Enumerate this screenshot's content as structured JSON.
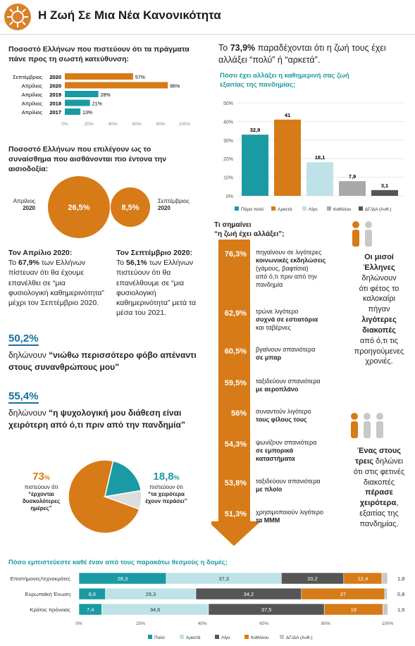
{
  "header": {
    "title": "Η Ζωή Σε Μια Νέα Κανονικότητα"
  },
  "colors": {
    "orange": "#d67b17",
    "teal": "#1a9aa3",
    "light_teal": "#bde3e8",
    "dark_gray": "#555555",
    "gray": "#a8a8a8",
    "light_gray": "#c8c8c8",
    "blue": "#1a6fa0"
  },
  "section1": {
    "title": "Ποσοστό Ελλήνων που πιστεύουν ότι τα πράγματα πάνε προς τη σωστή κατεύθυνση:"
  },
  "section2": {
    "title": "Ποσοστό Ελλήνων που επιλέγουν ως το συναίσθημα που αισθάνονται πιο έντονα την αισιοδοξία:",
    "left_label_1": "Απρίλιος",
    "left_label_2": "2020",
    "right_label_1": "Σεπτέμβριος",
    "right_label_2": "2020"
  },
  "april_text": {
    "head": "Τον Απρίλιο 2020:",
    "body_1": "Το",
    "pct": "67,9%",
    "body_2": "των Ελλήνων πίστευαν ότι θα έχουμε επανέλθει σε “μια φυσιολογική καθημερινότητα” μέχρι τον Σεπτέμβριο 2020."
  },
  "sept_text": {
    "head": "Τον Σεπτέμβριο 2020:",
    "body_1": "Το",
    "pct": "56,1%",
    "body_2": "των Ελλήνων πιστεύουν ότι θα επανέλθουμε σε “μια φυσιολογική καθημερινότητα” μετά τα μέσα του 2021."
  },
  "fear": {
    "pct": "50,2%",
    "lead": "δηλώνουν",
    "quote": "“νιώθω περισσότερο φόβο απέναντι στους συνανθρώπους μου”"
  },
  "psych": {
    "pct": "55,4%",
    "lead": "δηλώνουν",
    "quote": "“η ψυχολογική μου διάθεση είναι χειρότερη από ό,τι πριν από την πανδημία”"
  },
  "pie_text": {
    "left_pct": "73",
    "left_sup": "%",
    "left_1": "πιστεύουν ότι",
    "left_2": "“έρχονται",
    "left_3": "δυσκολότερες",
    "left_4": "ημέρες”",
    "right_pct": "18,8",
    "right_sup": "%",
    "right_1": "πιστεύουν ότι",
    "right_2": "“τα χειρότερα",
    "right_3": "έχουν περάσει”"
  },
  "top_right": {
    "pre": "Το",
    "pct": "73,9%",
    "post": "παραδέχονται ότι η ζωή τους έχει αλλάξει “πολύ” ή “αρκετά”.",
    "subtitle_1": "Πόσο έχει αλλάξει η καθημερινή σας ζωή",
    "subtitle_2": "εξαιτίας της πανδημίας;"
  },
  "meaning": {
    "title_1": "Τι σημαίνει",
    "title_2": "“η ζωή έχει αλλάξει”;"
  },
  "side_facts": {
    "fact1_1": "Οι μισοί",
    "fact1_2": "Έλληνες",
    "fact1_3": "δηλώνουν",
    "fact1_4": "ότι φέτος το",
    "fact1_5": "καλοκαίρι",
    "fact1_6": "πήγαν",
    "fact1_7": "λιγότερες",
    "fact1_8": "διακοπές",
    "fact1_9": "από ό,τι τις",
    "fact1_10": "προηγούμενες",
    "fact1_11": "χρονιές.",
    "fact2_1": "Ένας στους",
    "fact2_2": "τρεις",
    "fact2_3": "δηλώνει",
    "fact2_4": "ότι στις φετινές",
    "fact2_5": "διακοπές",
    "fact2_6": "πέρασε",
    "fact2_7": "χειρότερα",
    "fact2_8": ",",
    "fact2_9": "εξαιτίας της",
    "fact2_10": "πανδημίας."
  },
  "trust": {
    "title": "Πόσο εμπιστεύεστε καθέ έναν από τους παρακάτω θεσμούς η δομές;"
  },
  "chart_data": [
    {
      "type": "bar",
      "orientation": "horizontal",
      "categories": [
        "Σεπτέμβριος 2020",
        "Απρίλιος 2020",
        "Απρίλιος 2019",
        "Απρίλιος 2018",
        "Απρίλιος 2017"
      ],
      "cat_main": [
        "Σεπτέμβριος",
        "Απρίλιος",
        "Απρίλιος",
        "Απρίλιος",
        "Απρίλιος"
      ],
      "cat_year": [
        "2020",
        "2020",
        "2019",
        "2018",
        "2017"
      ],
      "values": [
        57,
        86,
        28,
        21,
        13
      ],
      "value_labels": [
        "57%",
        "86%",
        "28%",
        "21%",
        "13%"
      ],
      "xlim": [
        0,
        100
      ],
      "ticks": [
        "0%",
        "20%",
        "40%",
        "60%",
        "80%",
        "100%"
      ]
    },
    {
      "type": "bubble",
      "categories": [
        "Απρίλιος 2020",
        "Σεπτέμβριος 2020"
      ],
      "values": [
        26.5,
        8.5
      ],
      "value_labels": [
        "26,5%",
        "8,5%"
      ]
    },
    {
      "type": "pie",
      "categories": [
        "έρχονται δυσκολότερες ημέρες",
        "τα χειρότερα έχουν περάσει",
        "other"
      ],
      "values": [
        73,
        18.8,
        8.2
      ]
    },
    {
      "type": "bar",
      "categories": [
        "Πάρα πολύ",
        "Αρκετά",
        "Λίγο",
        "Καθόλου",
        "ΔΓ/ΔΑ (Αυθ.)"
      ],
      "values": [
        32.9,
        41,
        18.1,
        7.9,
        3.1
      ],
      "value_labels": [
        "32,9",
        "41",
        "18,1",
        "7,9",
        "3,1"
      ],
      "ylim": [
        0,
        50
      ],
      "ticks": [
        "0%",
        "10%",
        "20%",
        "30%",
        "40%",
        "50%"
      ],
      "legend": "bottom"
    },
    {
      "type": "bar",
      "orientation": "horizontal",
      "categories": [
        "πηγαίνουν σε λιγότερες κοινωνικές εκδηλώσεις (γάμους, βαφτίσια) από ό,τι πριν από την πανδημία",
        "τρώνε λιγότερο συχνά σε εστιατόρια και ταβέρνες",
        "βγαίνουν σπανιότερα σε μπαρ",
        "ταξιδεύουν σπανιότερα με αεροπλάνο",
        "συναντούν λιγότερο τους φίλους τους",
        "ψωνίζουν σπανιότερα σε εμπορικά καταστήματα",
        "ταξιδεύουν σπανιότερα με πλοίο",
        "χρησιμοποιούν λιγότερο τα ΜΜΜ"
      ],
      "values": [
        76.3,
        62.9,
        60.5,
        59.5,
        56,
        54.3,
        53.8,
        51.3
      ],
      "value_labels": [
        "76,3%",
        "62,9%",
        "60,5%",
        "59,5%",
        "56%",
        "54,3%",
        "53,8%",
        "51,3%"
      ],
      "lines": [
        [
          {
            "t": "πηγαίνουν σε λιγότερες",
            "b": false
          },
          {
            "t": "κοινωνικές εκδηλώσεις",
            "b": true
          },
          {
            "t": "(γάμους, βαφτίσια)",
            "b": false
          },
          {
            "t": "από ό,τι πριν από την",
            "b": false
          },
          {
            "t": "πανδημία",
            "b": false
          }
        ],
        [
          {
            "t": "τρώνε λιγότερο",
            "b": false
          },
          {
            "t": "συχνά σε εστιατόρια",
            "b": true
          },
          {
            "t": "και ταβέρνες",
            "b": false
          }
        ],
        [
          {
            "t": "βγαίνουν σπανιότερα",
            "b": false
          },
          {
            "t": "σε μπαρ",
            "b": true
          }
        ],
        [
          {
            "t": "ταξιδεύουν σπανιότερα",
            "b": false
          },
          {
            "t": "με αεροπλάνο",
            "b": true
          }
        ],
        [
          {
            "t": "συναντούν λιγότερο",
            "b": false
          },
          {
            "t": "τους φίλους τους",
            "b": true
          }
        ],
        [
          {
            "t": "ψωνίζουν σπανιότερα",
            "b": false
          },
          {
            "t": "σε εμπορικά",
            "b": true
          },
          {
            "t": "καταστήματα",
            "b": true
          }
        ],
        [
          {
            "t": "ταξιδεύουν σπανιότερα",
            "b": false
          },
          {
            "t": "με πλοίο",
            "b": true
          }
        ],
        [
          {
            "t": "χρησιμοποιούν λιγότερο",
            "b": false
          },
          {
            "t": "τα ΜΜΜ",
            "b": true
          }
        ]
      ]
    },
    {
      "type": "bar",
      "orientation": "horizontal",
      "stacked": true,
      "categories": [
        "Επιστήμονες/τεχνοκράτες",
        "Ευρωπαϊκή Ένωση",
        "Κράτος πρόνοιας"
      ],
      "series": [
        {
          "name": "Πολύ",
          "values": [
            28.3,
            8.6,
            7.4
          ],
          "labels": [
            "28,3",
            "8,6",
            "7,4"
          ]
        },
        {
          "name": "Αρκετά",
          "values": [
            37.3,
            29.3,
            34.6
          ],
          "labels": [
            "37,3",
            "29,3",
            "34,6"
          ]
        },
        {
          "name": "Λίγο",
          "values": [
            20.2,
            34.2,
            37.5
          ],
          "labels": [
            "20,2",
            "34,2",
            "37,5"
          ]
        },
        {
          "name": "Καθόλου",
          "values": [
            12.4,
            27,
            19
          ],
          "labels": [
            "12,4",
            "27",
            "19"
          ]
        },
        {
          "name": "ΔΓ/ΔΑ (Αυθ.)",
          "values": [
            1.8,
            0.8,
            1.6
          ],
          "labels": [
            "1,8",
            "0,8",
            "1,6"
          ]
        }
      ],
      "xlim": [
        0,
        100
      ],
      "ticks": [
        "0%",
        "20%",
        "40%",
        "60%",
        "80%",
        "100%"
      ],
      "legend": "bottom"
    }
  ]
}
